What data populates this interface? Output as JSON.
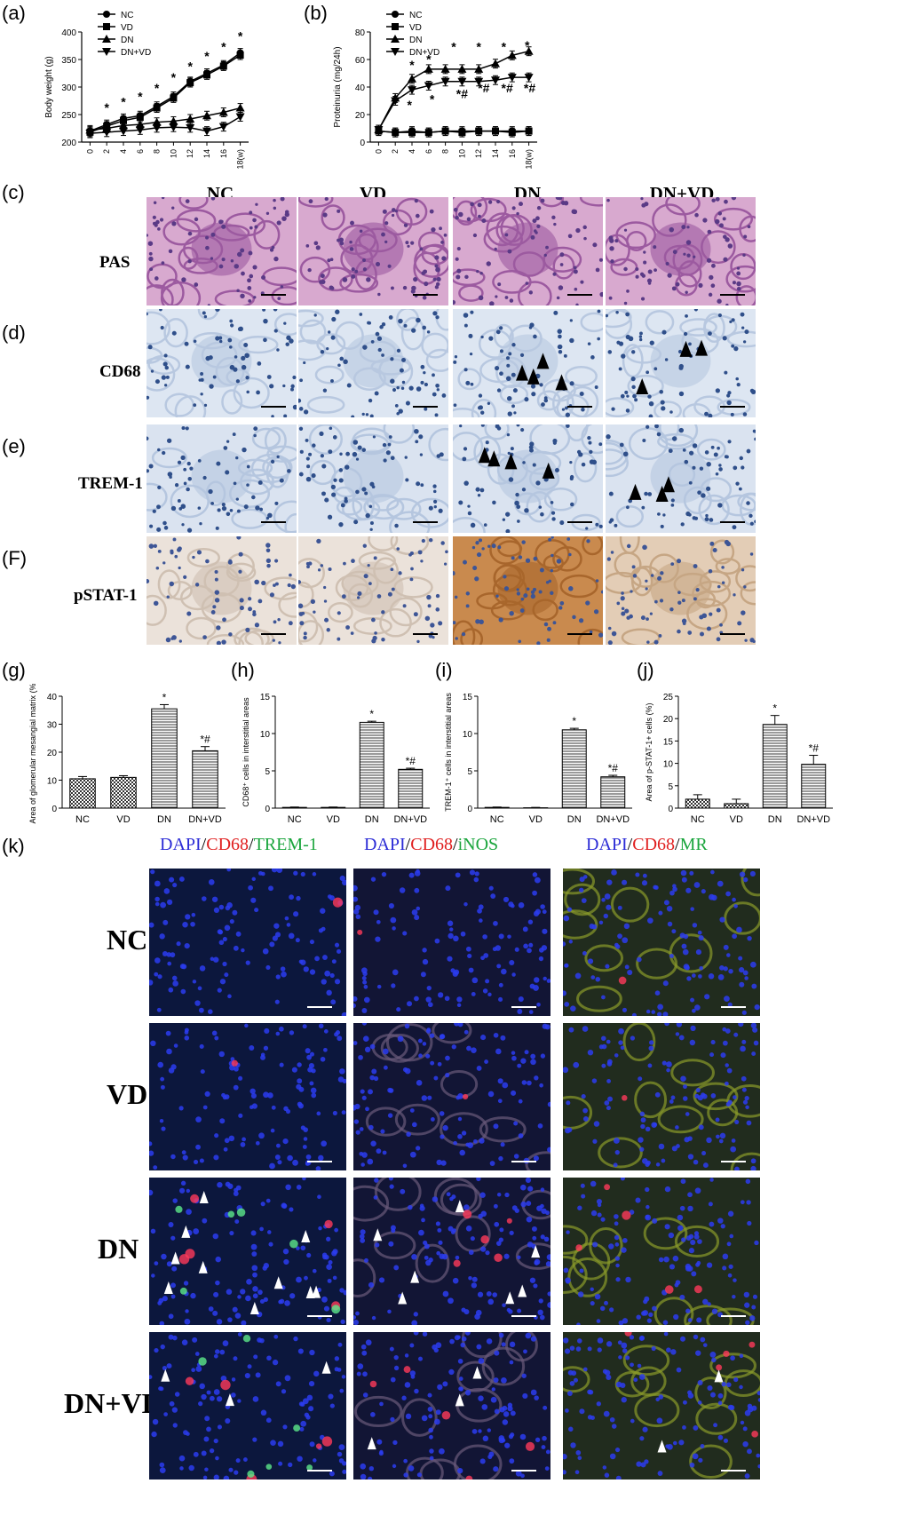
{
  "panel_labels": {
    "a": "(a)",
    "b": "(b)",
    "c": "(c)",
    "d": "(d)",
    "e": "(e)",
    "F": "(F)",
    "g": "(g)",
    "h": "(h)",
    "i": "(i)",
    "j": "(j)",
    "k": "(k)"
  },
  "groups": [
    "NC",
    "VD",
    "DN",
    "DN+VD"
  ],
  "legend_labels": [
    "NC",
    "VD",
    "DN",
    "DN+VD"
  ],
  "stain_rows": [
    "PAS",
    "CD68",
    "TREM-1",
    "pSTAT-1"
  ],
  "if_rows": [
    "NC",
    "VD",
    "DN",
    "DN+VD"
  ],
  "if_heads": [
    {
      "a": "DAPI",
      "b": "CD68",
      "c": "TREM-1"
    },
    {
      "a": "DAPI",
      "b": "CD68",
      "c": "iNOS"
    },
    {
      "a": "DAPI",
      "b": "CD68",
      "c": "MR"
    }
  ],
  "colors": {
    "dapi": "#2b2bd6",
    "cd68": "#e02020",
    "green": "#1aa53c"
  },
  "chart_data": [
    {
      "id": "a",
      "type": "line",
      "ylabel": "Body  weight  (g)",
      "ylim": [
        200,
        400
      ],
      "yticks": [
        "200",
        "250",
        "300",
        "350",
        "400"
      ],
      "x": [
        0,
        2,
        4,
        6,
        8,
        10,
        12,
        14,
        16,
        18
      ],
      "xticks": [
        "0",
        "2",
        "4",
        "6",
        "8",
        "10",
        "12",
        "14",
        "16",
        "18(w)"
      ],
      "series": [
        {
          "name": "NC",
          "marker": "circle",
          "values": [
            220,
            232,
            243,
            248,
            265,
            283,
            310,
            325,
            340,
            362
          ]
        },
        {
          "name": "VD",
          "marker": "square",
          "values": [
            218,
            229,
            239,
            245,
            262,
            280,
            308,
            322,
            338,
            358
          ]
        },
        {
          "name": "DN",
          "marker": "triangle",
          "values": [
            222,
            225,
            230,
            232,
            236,
            238,
            242,
            248,
            254,
            262
          ]
        },
        {
          "name": "DN+VD",
          "marker": "triangle-down",
          "values": [
            216,
            218,
            220,
            222,
            226,
            227,
            226,
            220,
            228,
            246
          ]
        }
      ],
      "annotations": [
        {
          "x": 2,
          "y": 255,
          "text": "*"
        },
        {
          "x": 4,
          "y": 265,
          "text": "*"
        },
        {
          "x": 6,
          "y": 275,
          "text": "*"
        },
        {
          "x": 8,
          "y": 290,
          "text": "*"
        },
        {
          "x": 10,
          "y": 310,
          "text": "*"
        },
        {
          "x": 12,
          "y": 330,
          "text": "*"
        },
        {
          "x": 14,
          "y": 348,
          "text": "*"
        },
        {
          "x": 16,
          "y": 365,
          "text": "*"
        },
        {
          "x": 18,
          "y": 385,
          "text": "*"
        }
      ]
    },
    {
      "id": "b",
      "type": "line",
      "ylabel": "Proteinuria (mg/24h)",
      "ylim": [
        0,
        80
      ],
      "yticks": [
        "0",
        "20",
        "40",
        "60",
        "80"
      ],
      "x": [
        0,
        2,
        4,
        6,
        8,
        10,
        12,
        14,
        16,
        18
      ],
      "xticks": [
        "0",
        "2",
        "4",
        "6",
        "8",
        "10",
        "12",
        "14",
        "16",
        "18(w)"
      ],
      "series": [
        {
          "name": "NC",
          "marker": "circle",
          "values": [
            8,
            7,
            8,
            7,
            8,
            8,
            8,
            8,
            8,
            8
          ]
        },
        {
          "name": "VD",
          "marker": "square",
          "values": [
            8,
            7,
            7,
            7,
            8,
            7,
            8,
            8,
            7,
            8
          ]
        },
        {
          "name": "DN",
          "marker": "triangle",
          "values": [
            9,
            32,
            46,
            53,
            53,
            53,
            53,
            57,
            63,
            66
          ]
        },
        {
          "name": "DN+VD",
          "marker": "triangle-down",
          "values": [
            9,
            30,
            38,
            41,
            44,
            44,
            44,
            45,
            47,
            47
          ]
        }
      ],
      "annotations": [
        {
          "x": 4,
          "y": 53,
          "text": "*"
        },
        {
          "x": 6,
          "y": 57,
          "text": "*"
        },
        {
          "x": 9,
          "y": 66,
          "text": "*"
        },
        {
          "x": 12,
          "y": 66,
          "text": "*"
        },
        {
          "x": 15,
          "y": 66,
          "text": "*"
        },
        {
          "x": 17.8,
          "y": 67,
          "text": "*"
        },
        {
          "x": 3.7,
          "y": 24,
          "text": "*"
        },
        {
          "x": 6.4,
          "y": 28,
          "text": "*"
        },
        {
          "x": 10,
          "y": 32,
          "text": "*#"
        },
        {
          "x": 12.6,
          "y": 36,
          "text": "*#"
        },
        {
          "x": 15.4,
          "y": 36,
          "text": "*#"
        },
        {
          "x": 18.1,
          "y": 36,
          "text": "*#"
        }
      ]
    },
    {
      "id": "g",
      "type": "bar",
      "ylabel": "Area of glomerular mesangial matrix (%)",
      "ylim": [
        0,
        40
      ],
      "yticks": [
        "0",
        "10",
        "20",
        "30",
        "40"
      ],
      "categories": [
        "NC",
        "VD",
        "DN",
        "DN+VD"
      ],
      "values": [
        10.5,
        11,
        35.5,
        20.5
      ],
      "errors": [
        0.8,
        0.6,
        1.5,
        1.5
      ],
      "labels": [
        "",
        "",
        "*",
        "*#"
      ]
    },
    {
      "id": "h",
      "type": "bar",
      "ylabel": "CD68⁺ cells in interstitial areas",
      "ylim": [
        0,
        15
      ],
      "yticks": [
        "0",
        "5",
        "10",
        "15"
      ],
      "categories": [
        "NC",
        "VD",
        "DN",
        "DN+VD"
      ],
      "values": [
        0.1,
        0.1,
        11.5,
        5.2
      ],
      "errors": [
        0.05,
        0.05,
        0.15,
        0.15
      ],
      "labels": [
        "",
        "",
        "*",
        "*#"
      ]
    },
    {
      "id": "i",
      "type": "bar",
      "ylabel": "TREM-1⁺ cells in interstitial areas",
      "ylim": [
        0,
        15
      ],
      "yticks": [
        "0",
        "5",
        "10",
        "15"
      ],
      "categories": [
        "NC",
        "VD",
        "DN",
        "DN+VD"
      ],
      "values": [
        0.1,
        0.05,
        10.5,
        4.2
      ],
      "errors": [
        0.05,
        0.05,
        0.2,
        0.2
      ],
      "labels": [
        "",
        "",
        "*",
        "*#"
      ]
    },
    {
      "id": "j",
      "type": "bar",
      "ylabel": "Area of p-STAT-1+ cells (%)",
      "ylim": [
        0,
        25
      ],
      "yticks": [
        "0",
        "5",
        "10",
        "15",
        "20",
        "25"
      ],
      "categories": [
        "NC",
        "VD",
        "DN",
        "DN+VD"
      ],
      "values": [
        2,
        1,
        18.7,
        9.8
      ],
      "errors": [
        1,
        1,
        2,
        2
      ],
      "labels": [
        "",
        "",
        "*",
        "*#"
      ]
    }
  ]
}
